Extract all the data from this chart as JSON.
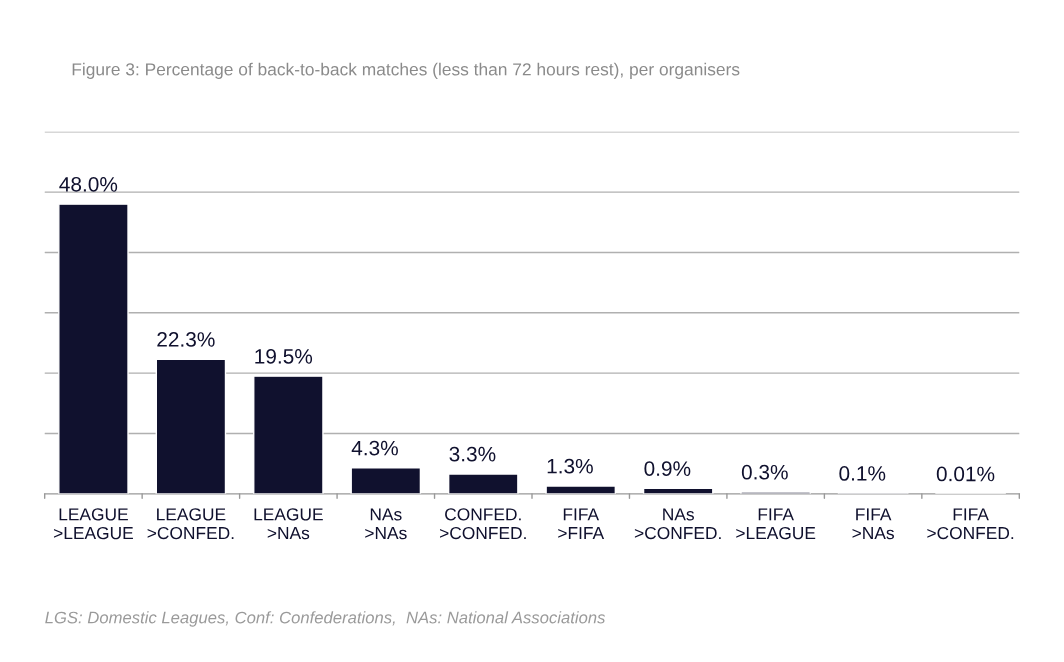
{
  "chart_data": {
    "type": "bar",
    "title": "Figure 3: Percentage of back-to-back matches (less than 72 hours rest), per organisers",
    "categories": [
      "LEAGUE\n>LEAGUE",
      "LEAGUE\n>CONFED.",
      "LEAGUE\n>NAs",
      "NAs\n>NAs",
      "CONFED.\n>CONFED.",
      "FIFA\n>FIFA",
      "NAs\n>CONFED.",
      "FIFA\n>LEAGUE",
      "FIFA\n>NAs",
      "FIFA\n>CONFED."
    ],
    "values": [
      48.0,
      22.3,
      19.5,
      4.3,
      3.3,
      1.3,
      0.9,
      0.3,
      0.1,
      0.01
    ],
    "value_labels": [
      "48.0%",
      "22.3%",
      "19.5%",
      "4.3%",
      "3.3%",
      "1.3%",
      "0.9%",
      "0.3%",
      "0.1%",
      "0.01%"
    ],
    "color": "#10112e",
    "ylim": [
      0,
      60
    ],
    "yticks": [
      {
        "value": 10,
        "label": null
      },
      {
        "value": 20,
        "label": null
      },
      {
        "value": 30,
        "label": null
      },
      {
        "value": 40,
        "label": null
      },
      {
        "value": 50,
        "label": null
      },
      {
        "value": 60,
        "label": null
      }
    ],
    "grid": "y",
    "tick_labels": "x",
    "annotations": [
      "LGS: Domestic Leagues, Conf: Confederations,  NAs: National Associations"
    ]
  }
}
